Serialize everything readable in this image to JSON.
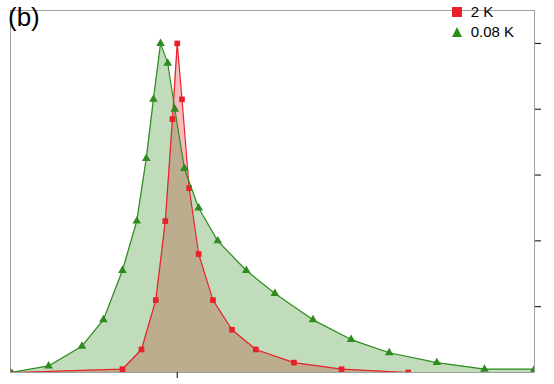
{
  "chart_data": {
    "type": "area",
    "title": "(b)",
    "xlim": [
      -3.5,
      7.5
    ],
    "ylim": [
      0,
      1.1
    ],
    "xticks": [
      0
    ],
    "yticks": [
      0.2,
      0.4,
      0.6,
      0.8,
      1
    ],
    "tick_labels": false,
    "grid": false,
    "legend": "upper right",
    "series": [
      {
        "name": "2 K",
        "color": "#e8212b",
        "marker": "square",
        "x": [
          -3.5,
          -1.15,
          -0.75,
          -0.45,
          -0.25,
          -0.1,
          0,
          0.1,
          0.25,
          0.45,
          0.75,
          1.15,
          1.65,
          2.45,
          3.45,
          4.85,
          7.5
        ],
        "values": [
          0,
          0.01,
          0.07,
          0.22,
          0.46,
          0.77,
          1.0,
          0.83,
          0.56,
          0.36,
          0.22,
          0.13,
          0.07,
          0.03,
          0.01,
          0,
          0
        ]
      },
      {
        "name": "0.08 K",
        "color": "#2e8b1e",
        "marker": "triangle",
        "x": [
          -3.5,
          -2.7,
          -2,
          -1.55,
          -1.15,
          -0.85,
          -0.65,
          -0.5,
          -0.35,
          -0.2,
          -0.05,
          0.15,
          0.45,
          0.85,
          1.45,
          2.05,
          2.85,
          3.65,
          4.45,
          5.45,
          6.45,
          7.5
        ],
        "values": [
          0,
          0.02,
          0.08,
          0.16,
          0.31,
          0.46,
          0.65,
          0.83,
          1.0,
          0.94,
          0.8,
          0.62,
          0.5,
          0.4,
          0.31,
          0.24,
          0.16,
          0.1,
          0.06,
          0.03,
          0.01,
          0.01
        ]
      }
    ]
  }
}
